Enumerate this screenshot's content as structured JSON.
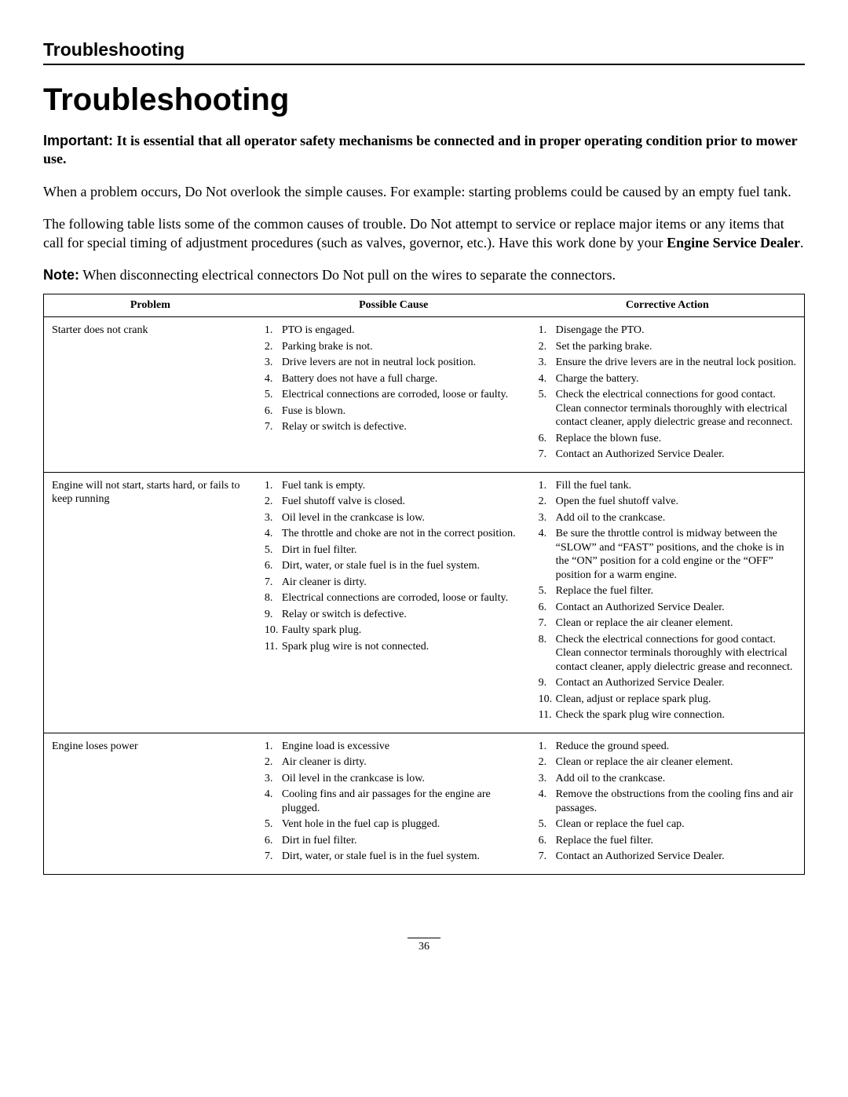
{
  "header": {
    "section_header": "Troubleshooting"
  },
  "title": "Troubleshooting",
  "important": {
    "label": "Important:",
    "text_bold": "It is essential that all operator safety mechanisms be connected and in proper operating condition prior to mower use."
  },
  "paragraphs": {
    "p1": "When a problem occurs, Do Not overlook the simple causes. For example: starting problems could be caused by an empty fuel tank.",
    "p2_pre": "The following table lists some of the common causes of trouble. Do Not attempt to service or replace major items or any items that call for special timing of adjustment procedures (such as valves, governor, etc.). Have this work done by your ",
    "p2_bold": "Engine Service Dealer",
    "p2_post": "."
  },
  "note": {
    "label": "Note:",
    "text": "When disconnecting electrical connectors Do Not pull on the wires to separate the connectors."
  },
  "table": {
    "columns": [
      "Problem",
      "Possible Cause",
      "Corrective Action"
    ],
    "rows": [
      {
        "problem": "Starter does not crank",
        "causes": [
          "PTO is engaged.",
          "Parking brake is not.",
          "Drive levers are not in neutral lock position.",
          "Battery does not have a full charge.",
          "Electrical connections are corroded, loose or faulty.",
          "Fuse is blown.",
          "Relay or switch is defective."
        ],
        "actions": [
          "Disengage the PTO.",
          "Set the parking brake.",
          "Ensure the drive levers are in the neutral lock position.",
          "Charge the battery.",
          "Check the electrical connections for good contact. Clean connector terminals thoroughly with electrical contact cleaner, apply dielectric grease and reconnect.",
          "Replace the blown fuse.",
          "Contact an Authorized Service Dealer."
        ]
      },
      {
        "problem": "Engine will not start, starts hard, or fails to keep running",
        "causes": [
          "Fuel tank is empty.",
          "Fuel shutoff valve is closed.",
          "Oil level in the crankcase is low.",
          "The throttle and choke are not in the correct position.",
          "Dirt in fuel filter.",
          "Dirt, water, or stale fuel is in the fuel system.",
          "Air cleaner is dirty.",
          "Electrical connections are corroded, loose or faulty.",
          "Relay or switch is defective.",
          "Faulty spark plug.",
          "Spark plug wire is not connected."
        ],
        "actions": [
          "Fill the fuel tank.",
          "Open the fuel shutoff valve.",
          "Add oil to the crankcase.",
          "Be sure the throttle control is midway between the “SLOW” and “FAST” positions, and the choke is in the “ON” position for a cold engine or the “OFF” position for a warm engine.",
          "Replace the fuel filter.",
          "Contact an Authorized Service Dealer.",
          "Clean or replace the air cleaner element.",
          "Check the electrical connections for good contact. Clean connector terminals thoroughly with electrical contact cleaner, apply dielectric grease and reconnect.",
          "Contact an Authorized Service Dealer.",
          "Clean, adjust or replace spark plug.",
          "Check the spark plug wire connection."
        ]
      },
      {
        "problem": "Engine loses power",
        "causes": [
          "Engine load is excessive",
          "Air cleaner is dirty.",
          "Oil level in the crankcase is low.",
          "Cooling fins and air passages for the engine are plugged.",
          "Vent hole in the fuel cap is plugged.",
          "Dirt in fuel filter.",
          "Dirt, water, or stale fuel is in the fuel system."
        ],
        "actions": [
          "Reduce the ground speed.",
          "Clean or replace the air cleaner element.",
          "Add oil to the crankcase.",
          "Remove the obstructions from the cooling fins and air passages.",
          "Clean or replace the fuel cap.",
          "Replace the fuel filter.",
          "Contact an Authorized Service Dealer."
        ]
      }
    ]
  },
  "page_number": "36"
}
